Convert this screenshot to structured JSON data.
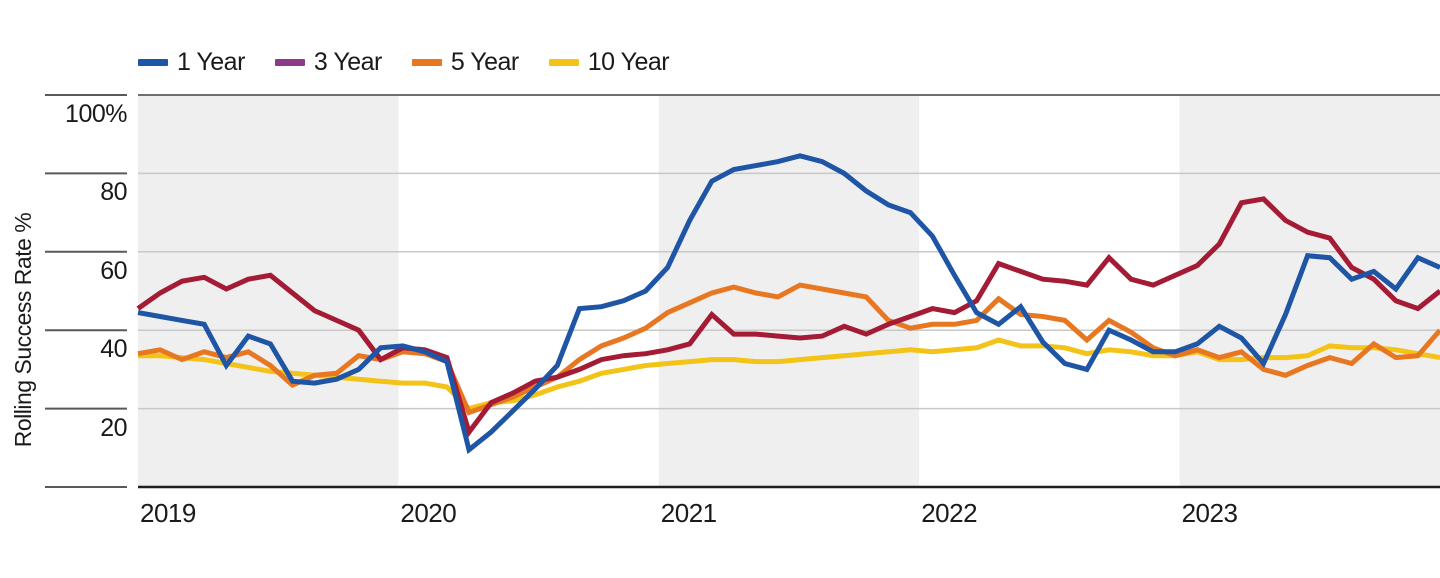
{
  "chart_data": {
    "type": "line",
    "title": "",
    "ylabel": "Rolling Success Rate %",
    "x_unit": "month",
    "x_range": [
      "2019-01",
      "2023-12"
    ],
    "categories": [
      "2019",
      "2020",
      "2021",
      "2022",
      "2023"
    ],
    "shaded_year_indices": [
      0,
      2,
      4
    ],
    "y_ticks": [
      {
        "label": "100%",
        "value": 100
      },
      {
        "label": "80",
        "value": 80
      },
      {
        "label": "60",
        "value": 60
      },
      {
        "label": "40",
        "value": 40
      },
      {
        "label": "20",
        "value": 20
      }
    ],
    "ylim": [
      0,
      100
    ],
    "grid": "horizontal",
    "legend_position": "top-left",
    "colors": {
      "band_fill": "#efefef",
      "gridline": "#c8c8c8",
      "axis_top_line": "#6d6e71",
      "axis_bottom_line": "#1f1f1f",
      "tick_line": "#58595b",
      "text": "#1a1a1a"
    },
    "series": [
      {
        "name": "10 Year",
        "line_color": "#f3c317",
        "swatch_color": "#f3c317",
        "values": [
          33.5,
          33.5,
          33,
          32.5,
          31.5,
          30.5,
          29.5,
          29,
          28.5,
          28,
          27.5,
          27,
          26.5,
          26.5,
          25.5,
          20,
          21.5,
          22,
          23.5,
          25.5,
          27,
          29,
          30,
          31,
          31.5,
          32,
          32.5,
          32.5,
          32,
          32,
          32.5,
          33,
          33.5,
          34,
          34.5,
          35,
          34.5,
          35,
          35.5,
          37.5,
          36,
          36,
          35.5,
          34,
          35,
          34.5,
          33.5,
          33.5,
          34.5,
          32.5,
          32.5,
          33,
          33,
          33.5,
          36,
          35.5,
          35.5,
          35,
          34,
          33
        ]
      },
      {
        "name": "5 Year",
        "line_color": "#e87722",
        "swatch_color": "#e87722",
        "values": [
          34,
          35,
          32.5,
          34.5,
          33,
          34.5,
          31,
          26,
          28.5,
          29,
          33.5,
          32.5,
          34.5,
          34,
          32,
          19,
          21,
          23,
          25.5,
          28,
          32.5,
          36,
          38,
          40.5,
          44.5,
          47,
          49.5,
          51,
          49.5,
          48.5,
          51.5,
          50.5,
          49.5,
          48.5,
          42.5,
          40.5,
          41.5,
          41.5,
          42.5,
          48,
          44,
          43.5,
          42.5,
          37.5,
          42.5,
          39.5,
          35.5,
          33.5,
          35,
          33,
          34.5,
          30,
          28.5,
          31,
          33,
          31.5,
          36.5,
          33,
          33.5,
          40
        ]
      },
      {
        "name": "3 Year",
        "line_color": "#a31b34",
        "swatch_color": "#8e3a8b",
        "values": [
          45.5,
          49.5,
          52.5,
          53.5,
          50.5,
          53,
          54,
          49.5,
          45,
          42.5,
          40,
          32.5,
          35.5,
          35,
          33,
          14,
          21.5,
          24,
          27,
          28,
          30,
          32.5,
          33.5,
          34,
          35,
          36.5,
          44,
          39,
          39,
          38.5,
          38,
          38.5,
          41,
          39,
          41.5,
          43.5,
          45.5,
          44.5,
          47.5,
          57,
          55,
          53,
          52.5,
          51.5,
          58.5,
          53,
          51.5,
          54,
          56.5,
          62,
          72.5,
          73.5,
          68,
          65,
          63.5,
          56,
          53,
          47.5,
          45.5,
          50
        ]
      },
      {
        "name": "1 Year",
        "line_color": "#1f55a5",
        "swatch_color": "#1f55a5",
        "values": [
          44.5,
          43.5,
          42.5,
          41.5,
          31,
          38.5,
          36.5,
          27,
          26.5,
          27.5,
          30,
          35.5,
          36,
          34.5,
          32,
          9.5,
          14,
          19.5,
          25,
          31,
          45.5,
          46,
          47.5,
          50,
          56,
          68,
          78,
          81,
          82,
          83,
          84.5,
          83,
          80,
          75.5,
          72,
          70,
          64,
          54,
          44.5,
          41.5,
          46,
          37,
          31.5,
          30,
          40,
          37.5,
          34.5,
          34.5,
          36.5,
          41,
          38,
          31.5,
          44,
          59,
          58.5,
          53,
          55,
          50.5,
          58.5,
          56
        ]
      }
    ],
    "legend_order": [
      "1 Year",
      "3 Year",
      "5 Year",
      "10 Year"
    ]
  }
}
